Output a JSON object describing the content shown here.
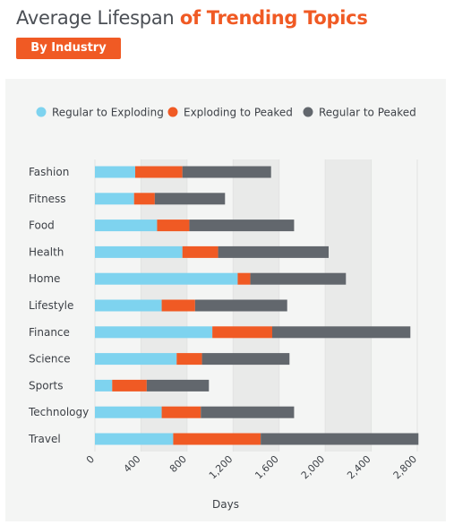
{
  "header": {
    "title_part1": "Average Lifespan",
    "title_part2": "of Trending Topics",
    "badge": "By Industry"
  },
  "colors": {
    "accent": "#f05a24",
    "regular_to_exploding": "#7ed3ef",
    "exploding_to_peaked": "#f05a24",
    "regular_to_peaked": "#62676d",
    "panel_bg": "#f4f5f4"
  },
  "chart_data": {
    "type": "bar",
    "orientation": "horizontal",
    "stacked": true,
    "title": "Average Lifespan of Trending Topics",
    "subtitle": "By Industry",
    "xlabel": "Days",
    "ylabel": "",
    "xlim": [
      0,
      2800
    ],
    "xticks": [
      "0",
      "400",
      "800",
      "1,200",
      "1,600",
      "2,000",
      "2,400",
      "2,800"
    ],
    "xtick_values": [
      0,
      400,
      800,
      1200,
      1600,
      2000,
      2400,
      2800
    ],
    "grid": "vertical bands",
    "legend_position": "top",
    "categories": [
      "Fashion",
      "Fitness",
      "Food",
      "Health",
      "Home",
      "Lifestyle",
      "Finance",
      "Science",
      "Sports",
      "Technology",
      "Travel"
    ],
    "series": [
      {
        "name": "Regular to Exploding",
        "values": [
          350,
          340,
          540,
          760,
          1240,
          580,
          1020,
          710,
          150,
          580,
          680
        ]
      },
      {
        "name": "Exploding to Peaked",
        "values": [
          410,
          180,
          280,
          310,
          110,
          290,
          520,
          220,
          300,
          340,
          760
        ]
      },
      {
        "name": "Regular to Peaked",
        "values": [
          770,
          610,
          910,
          960,
          830,
          800,
          1200,
          760,
          540,
          810,
          1370
        ]
      }
    ]
  }
}
